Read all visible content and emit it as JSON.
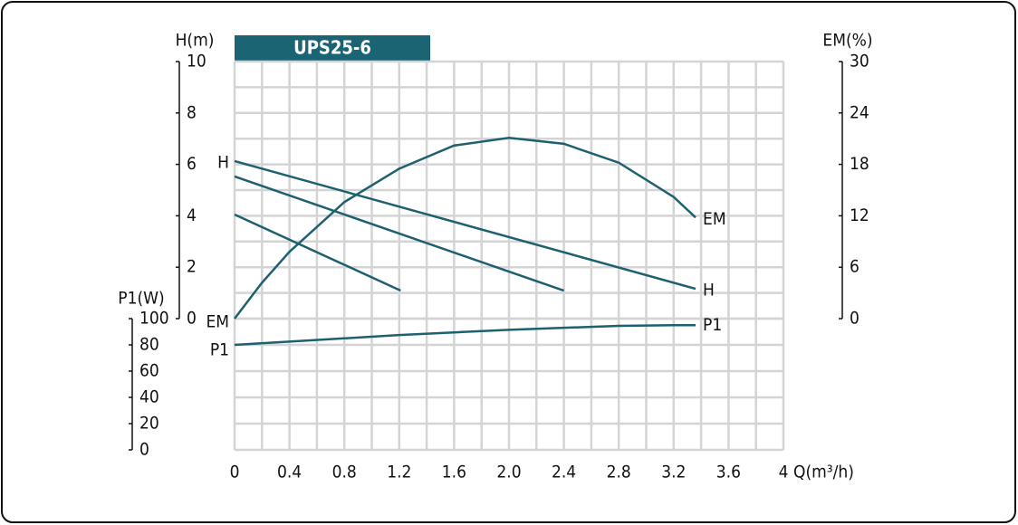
{
  "chart_data": {
    "type": "line",
    "title": "UPS25-6",
    "x_label": "Q(m³/h)",
    "y_label": "H(m)",
    "y2_label": "EM(%)",
    "y3_label": "P1(W)",
    "color": "#1d6070",
    "xlim": [
      0,
      4
    ],
    "xticks": [
      0,
      0.4,
      0.8,
      1.2,
      1.6,
      {
        "value": 2,
        "label": "2.0"
      },
      2.4,
      2.8,
      3.2,
      3.6,
      4
    ],
    "xgrid": [
      0,
      0.2,
      0.4,
      0.6,
      0.8,
      1,
      1.2,
      1.4,
      1.6,
      1.8,
      2,
      2.2,
      2.4,
      2.6,
      2.8,
      3,
      3.2,
      3.4,
      3.6,
      3.8,
      4
    ],
    "ylim": [
      0,
      10
    ],
    "yticks": [
      0,
      2,
      4,
      6,
      8,
      10
    ],
    "ygrid": [
      0,
      1,
      2,
      3,
      4,
      5,
      6,
      7,
      8,
      9,
      10
    ],
    "y2lim": [
      0,
      30
    ],
    "y2ticks": [
      0,
      6,
      12,
      18,
      24,
      30
    ],
    "y3lim": [
      0,
      100
    ],
    "y3ticks": [
      0,
      20,
      40,
      60,
      80,
      100
    ],
    "grid": true,
    "series": [
      {
        "name": "H",
        "axis": "y",
        "x": [
          0,
          3.36
        ],
        "values": [
          6.13,
          1.16
        ]
      },
      {
        "axis": "y",
        "x": [
          0,
          2.4
        ],
        "values": [
          5.53,
          1.09
        ]
      },
      {
        "axis": "y",
        "x": [
          0,
          1.21
        ],
        "values": [
          4.05,
          1.09
        ]
      },
      {
        "name": "EM",
        "axis": "y2",
        "x": [
          0,
          0.2,
          0.4,
          0.8,
          1.2,
          1.6,
          2.0,
          2.4,
          2.8,
          3.2,
          3.36
        ],
        "values": [
          0,
          4.2,
          7.8,
          13.6,
          17.5,
          20.2,
          21.1,
          20.4,
          18.2,
          14.2,
          11.8
        ]
      },
      {
        "name": "P1",
        "axis": "y3",
        "x": [
          0,
          0.4,
          0.8,
          1.2,
          1.6,
          2.0,
          2.4,
          2.8,
          3.2,
          3.36
        ],
        "values": [
          80,
          82.5,
          85,
          87.5,
          89.5,
          91.5,
          93,
          94.5,
          95,
          95
        ]
      }
    ]
  }
}
